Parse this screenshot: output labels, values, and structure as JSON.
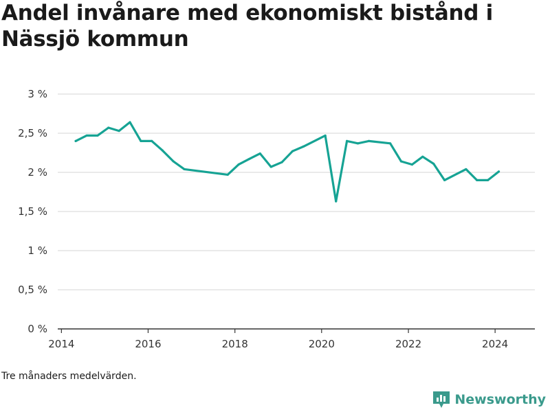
{
  "title": "Andel invånare med ekonomiskt bistånd i Nässjö kommun",
  "footnote": "Tre månaders medelvärden.",
  "brand": {
    "name": "Newsworthy",
    "icon": "newsworthy-logo-icon"
  },
  "colors": {
    "line": "#16a394",
    "grid": "#dddddd",
    "axis": "#333333",
    "brand": "#3a9a8c"
  },
  "chart_data": {
    "type": "line",
    "title": "Andel invånare med ekonomiskt bistånd i Nässjö kommun",
    "xlabel": "",
    "ylabel": "",
    "xlim": [
      "2013-12-01",
      "2024-12-01"
    ],
    "ylim": [
      0,
      3
    ],
    "grid": true,
    "legend": "none",
    "x_ticks": [
      {
        "date": "2014-01-01",
        "label": "2014"
      },
      {
        "date": "2016-01-01",
        "label": "2016"
      },
      {
        "date": "2018-01-01",
        "label": "2018"
      },
      {
        "date": "2020-01-01",
        "label": "2020"
      },
      {
        "date": "2022-01-01",
        "label": "2022"
      },
      {
        "date": "2024-01-01",
        "label": "2024"
      }
    ],
    "y_ticks": [
      {
        "value": 0,
        "label": "0 %"
      },
      {
        "value": 0.5,
        "label": "0,5 %"
      },
      {
        "value": 1,
        "label": "1 %"
      },
      {
        "value": 1.5,
        "label": "1,5 %"
      },
      {
        "value": 2,
        "label": "2 %"
      },
      {
        "value": 2.5,
        "label": "2,5 %"
      },
      {
        "value": 3,
        "label": "3 %"
      }
    ],
    "series": [
      {
        "points": [
          {
            "x": "2014-05-01",
            "y": 2.4
          },
          {
            "x": "2014-08-01",
            "y": 2.47
          },
          {
            "x": "2014-11-01",
            "y": 2.47
          },
          {
            "x": "2015-02-01",
            "y": 2.57
          },
          {
            "x": "2015-05-01",
            "y": 2.53
          },
          {
            "x": "2015-08-01",
            "y": 2.64
          },
          {
            "x": "2015-11-01",
            "y": 2.4
          },
          {
            "x": "2016-02-01",
            "y": 2.4
          },
          {
            "x": "2016-05-01",
            "y": 2.28
          },
          {
            "x": "2016-08-01",
            "y": 2.14
          },
          {
            "x": "2016-11-01",
            "y": 2.04
          },
          {
            "x": "2017-11-01",
            "y": 1.97
          },
          {
            "x": "2018-02-01",
            "y": 2.1
          },
          {
            "x": "2018-05-01",
            "y": 2.17
          },
          {
            "x": "2018-08-01",
            "y": 2.24
          },
          {
            "x": "2018-11-01",
            "y": 2.07
          },
          {
            "x": "2019-02-01",
            "y": 2.13
          },
          {
            "x": "2019-05-01",
            "y": 2.27
          },
          {
            "x": "2019-08-01",
            "y": 2.33
          },
          {
            "x": "2020-02-01",
            "y": 2.47
          },
          {
            "x": "2020-05-01",
            "y": 1.63
          },
          {
            "x": "2020-08-01",
            "y": 2.4
          },
          {
            "x": "2020-11-01",
            "y": 2.37
          },
          {
            "x": "2021-02-01",
            "y": 2.4
          },
          {
            "x": "2021-08-01",
            "y": 2.37
          },
          {
            "x": "2021-11-01",
            "y": 2.14
          },
          {
            "x": "2022-02-01",
            "y": 2.1
          },
          {
            "x": "2022-05-01",
            "y": 2.2
          },
          {
            "x": "2022-08-01",
            "y": 2.11
          },
          {
            "x": "2022-11-01",
            "y": 1.9
          },
          {
            "x": "2023-05-01",
            "y": 2.04
          },
          {
            "x": "2023-08-01",
            "y": 1.9
          },
          {
            "x": "2023-11-01",
            "y": 1.9
          },
          {
            "x": "2024-02-01",
            "y": 2.01
          }
        ]
      }
    ]
  }
}
